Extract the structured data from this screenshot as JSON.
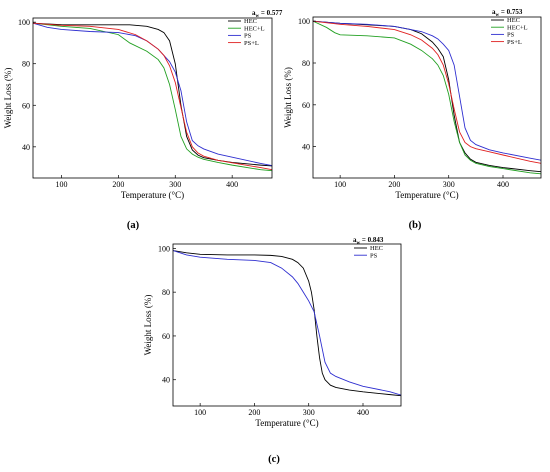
{
  "colors": {
    "HEC": "#000000",
    "HEC+L": "#22a022",
    "PS": "#2f2fd0",
    "PS+L": "#e02020"
  },
  "chart_data": [
    {
      "type": "line",
      "panel": "(a)",
      "annotation": "a_w = 0.577",
      "annotation_main": "a",
      "annotation_sub": "w",
      "annotation_value": " = 0.577",
      "xlabel": "Temperature (°C)",
      "ylabel": "Weight Loss (%)",
      "xlim": [
        50,
        470
      ],
      "ylim": [
        25,
        102
      ],
      "xticks": [
        100,
        200,
        300,
        400
      ],
      "yticks": [
        40,
        60,
        80,
        100
      ],
      "legend_position": "top-right",
      "series": [
        {
          "name": "HEC",
          "x": [
            50,
            100,
            150,
            200,
            220,
            250,
            270,
            280,
            290,
            300,
            310,
            320,
            330,
            340,
            350,
            375,
            400,
            450,
            470
          ],
          "y": [
            99.5,
            98.8,
            98.7,
            98.7,
            98.7,
            98,
            96.5,
            95,
            91,
            80,
            60,
            45,
            38.5,
            36,
            34.8,
            33.5,
            32.5,
            31.2,
            30.8
          ]
        },
        {
          "name": "HEC+L",
          "x": [
            50,
            100,
            150,
            200,
            220,
            250,
            270,
            280,
            290,
            300,
            310,
            320,
            330,
            340,
            350,
            375,
            400,
            450,
            470
          ],
          "y": [
            99.5,
            98,
            97,
            94,
            90,
            86,
            82,
            78,
            70,
            58,
            45,
            39,
            36.5,
            35,
            34,
            32.5,
            31.2,
            29,
            28.5
          ]
        },
        {
          "name": "PS",
          "x": [
            50,
            75,
            100,
            150,
            200,
            230,
            250,
            270,
            290,
            300,
            310,
            320,
            330,
            340,
            350,
            375,
            400,
            450,
            470
          ],
          "y": [
            99.5,
            97.5,
            96.5,
            95.5,
            95,
            93.5,
            91,
            87,
            81,
            76,
            67,
            52,
            43,
            40.5,
            39,
            36.5,
            35,
            32,
            31
          ]
        },
        {
          "name": "PS+L",
          "x": [
            50,
            100,
            150,
            200,
            230,
            250,
            270,
            280,
            290,
            300,
            310,
            320,
            330,
            340,
            350,
            375,
            400,
            450,
            470
          ],
          "y": [
            99.5,
            98.5,
            98,
            96.5,
            94,
            91,
            87,
            84,
            79,
            71,
            59,
            47,
            40,
            37,
            35.5,
            33.5,
            32.3,
            30,
            29
          ]
        }
      ]
    },
    {
      "type": "line",
      "panel": "(b)",
      "annotation": "a_w = 0.753",
      "annotation_main": "a",
      "annotation_sub": "w",
      "annotation_value": " = 0.753",
      "xlabel": "Temperature (°C)",
      "ylabel": "Weight Loss (%)",
      "xlim": [
        50,
        470
      ],
      "ylim": [
        25,
        102
      ],
      "xticks": [
        100,
        200,
        300,
        400
      ],
      "yticks": [
        40,
        60,
        80,
        100
      ],
      "legend_position": "top-right",
      "series": [
        {
          "name": "HEC",
          "x": [
            50,
            100,
            150,
            200,
            230,
            250,
            270,
            280,
            290,
            300,
            310,
            320,
            330,
            340,
            350,
            375,
            400,
            450,
            470
          ],
          "y": [
            100,
            99,
            98.3,
            97.5,
            96,
            94,
            90,
            87,
            83,
            72,
            55,
            42,
            37,
            34,
            32.5,
            31,
            30,
            28.5,
            28
          ]
        },
        {
          "name": "HEC+L",
          "x": [
            50,
            75,
            90,
            100,
            150,
            200,
            230,
            250,
            270,
            280,
            290,
            300,
            310,
            320,
            330,
            340,
            350,
            375,
            400,
            450,
            470
          ],
          "y": [
            100,
            97,
            94.5,
            93.5,
            93,
            92,
            89,
            86,
            82,
            79,
            74,
            65,
            52,
            42,
            36,
            33.5,
            32,
            30.5,
            29.5,
            27.5,
            27
          ]
        },
        {
          "name": "PS",
          "x": [
            50,
            100,
            150,
            200,
            230,
            250,
            270,
            280,
            290,
            300,
            310,
            320,
            330,
            340,
            350,
            375,
            400,
            450,
            470
          ],
          "y": [
            100,
            99,
            98.5,
            97.5,
            96,
            95,
            93,
            91.5,
            89,
            86,
            79,
            64,
            49,
            43,
            41,
            38.5,
            37,
            34.5,
            33.5
          ]
        },
        {
          "name": "PS+L",
          "x": [
            50,
            100,
            150,
            200,
            230,
            250,
            270,
            280,
            290,
            300,
            310,
            320,
            330,
            340,
            350,
            375,
            400,
            450,
            470
          ],
          "y": [
            100,
            98.5,
            97.5,
            96,
            93.5,
            91,
            87,
            84,
            79,
            70,
            58,
            47,
            42,
            40,
            39,
            37.5,
            36,
            33,
            32
          ]
        }
      ]
    },
    {
      "type": "line",
      "panel": "(c)",
      "annotation": "a_w = 0.843",
      "annotation_main": "a",
      "annotation_sub": "w",
      "annotation_value": " = 0.843",
      "xlabel": "Temperature (°C)",
      "ylabel": "Weight Loss (%)",
      "xlim": [
        50,
        470
      ],
      "ylim": [
        28,
        102
      ],
      "xticks": [
        100,
        200,
        300,
        400
      ],
      "yticks": [
        40,
        60,
        80,
        100
      ],
      "legend_position": "top-right",
      "series": [
        {
          "name": "HEC",
          "x": [
            50,
            75,
            100,
            150,
            200,
            230,
            250,
            270,
            280,
            290,
            300,
            305,
            310,
            315,
            320,
            325,
            330,
            340,
            350,
            375,
            400,
            450,
            470
          ],
          "y": [
            99,
            98,
            97.3,
            97,
            97,
            96.8,
            96.3,
            95,
            93.5,
            91,
            85,
            80,
            72,
            60,
            50,
            43,
            40,
            37.5,
            36.5,
            35.3,
            34.5,
            33.2,
            32.7
          ]
        },
        {
          "name": "PS",
          "x": [
            50,
            75,
            100,
            150,
            200,
            230,
            250,
            270,
            280,
            290,
            300,
            310,
            320,
            330,
            340,
            350,
            375,
            400,
            450,
            470
          ],
          "y": [
            99,
            97,
            96,
            95,
            94.5,
            93.5,
            91,
            87,
            84,
            80,
            76,
            71,
            60,
            48,
            43,
            41.5,
            39,
            37,
            34.5,
            33
          ]
        }
      ]
    }
  ]
}
